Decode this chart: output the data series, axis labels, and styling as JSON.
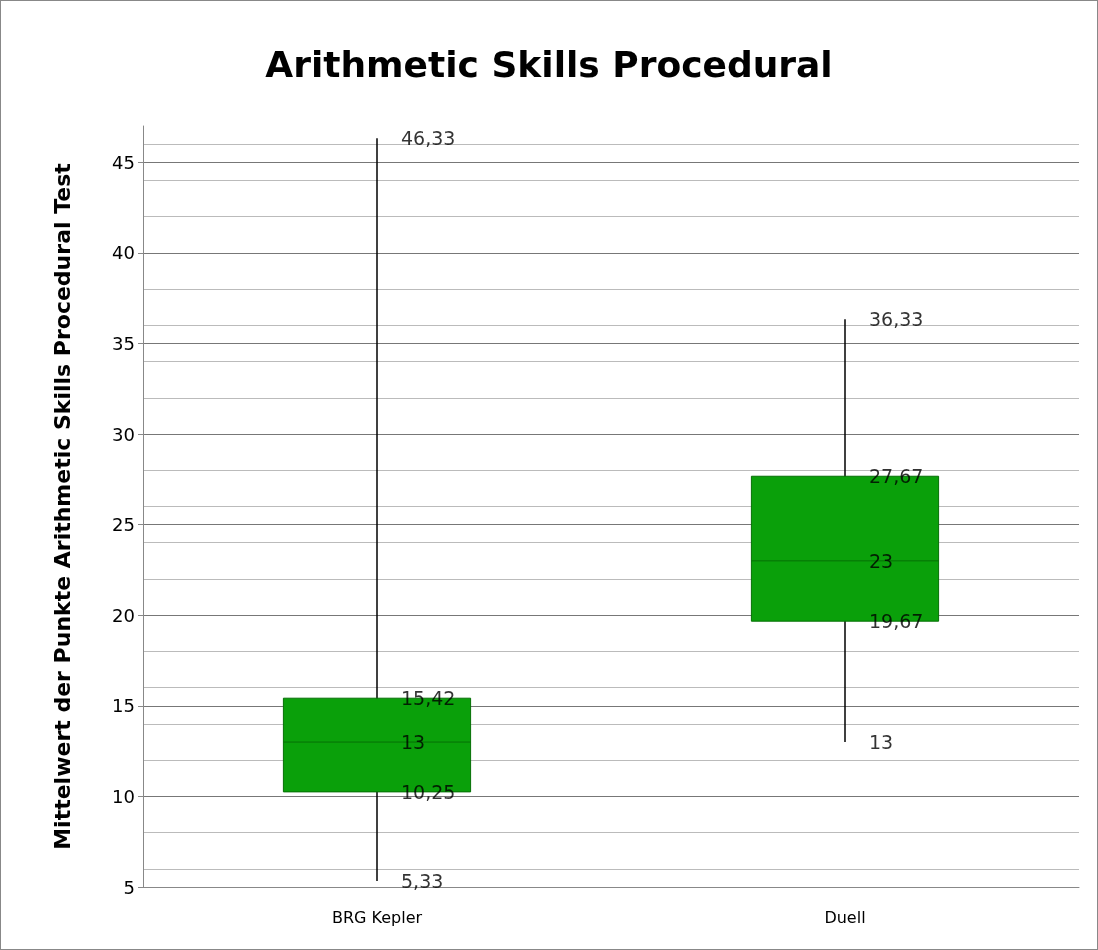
{
  "chart_data": {
    "type": "box",
    "title": "Arithmetic Skills Procedural",
    "ylabel": "Mittelwert der Punkte Arithmetic Skills Procedural Test",
    "categories": [
      "BRG Kepler",
      "Duell"
    ],
    "series": [
      {
        "color": "#0aa00a",
        "boxes": [
          {
            "low": 5.33,
            "q1": 10.25,
            "median": 13,
            "q3": 15.42,
            "high": 46.33
          },
          {
            "low": 13,
            "q1": 19.67,
            "median": 23,
            "q3": 27.67,
            "high": 36.33
          }
        ],
        "value_labels": [
          [
            "5,33",
            "10,25",
            "13",
            "15,42",
            "46,33"
          ],
          [
            "13",
            "19,67",
            "23",
            "27,67",
            "36,33"
          ]
        ]
      }
    ],
    "ylim": [
      5,
      47
    ],
    "yticks": [
      5,
      10,
      15,
      20,
      25,
      30,
      35,
      40,
      45
    ],
    "grid": "y"
  }
}
